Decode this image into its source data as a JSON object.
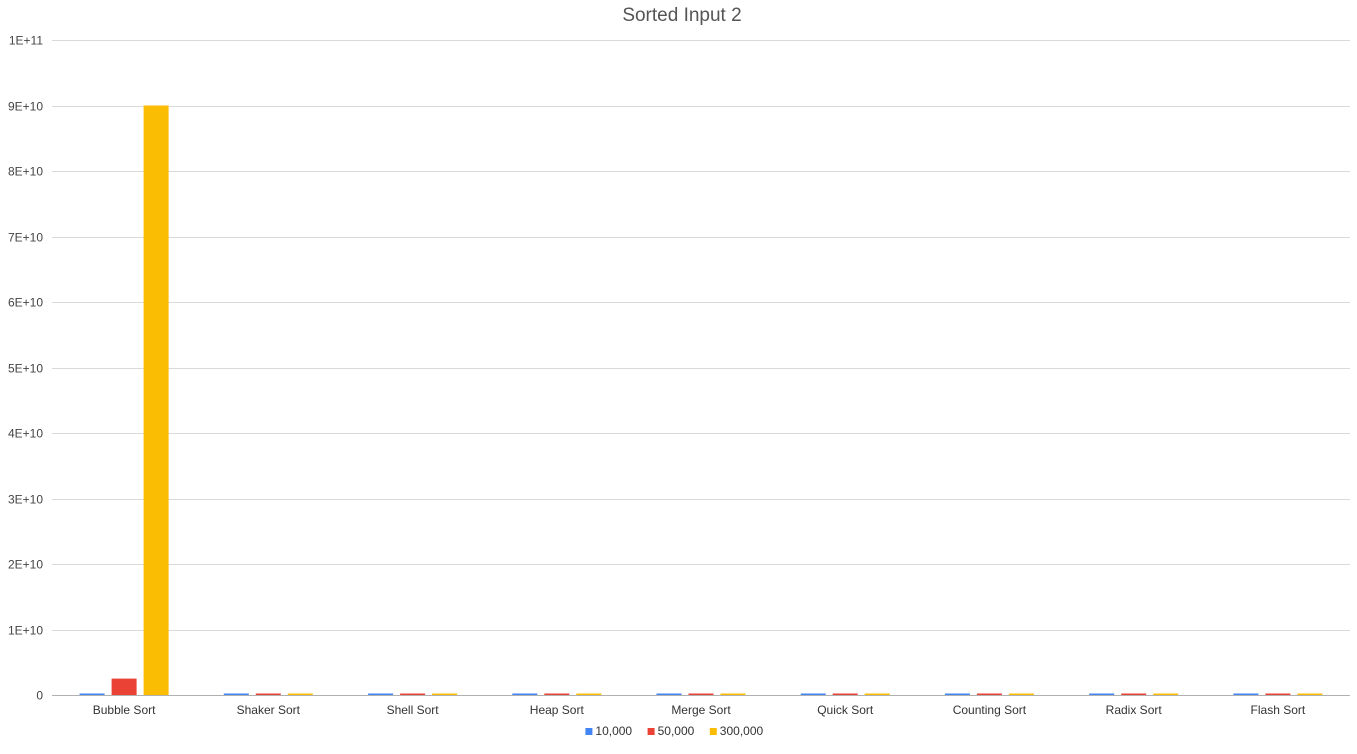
{
  "chart_data": {
    "type": "bar",
    "title": "Sorted Input 2",
    "xlabel": "",
    "ylabel": "",
    "categories": [
      "Bubble Sort",
      "Shaker Sort",
      "Shell Sort",
      "Heap Sort",
      "Merge Sort",
      "Quick Sort",
      "Counting Sort",
      "Radix Sort",
      "Flash Sort"
    ],
    "series": [
      {
        "name": "10,000",
        "color": "#4285F4",
        "values": [
          100000000,
          30000,
          300000,
          600000,
          500000,
          300000,
          50000,
          100000,
          100000
        ]
      },
      {
        "name": "50,000",
        "color": "#EA4335",
        "values": [
          2500000000,
          150000,
          1500000,
          3500000,
          2600000,
          1600000,
          250000,
          500000,
          500000
        ]
      },
      {
        "name": "300,000",
        "color": "#FBBC04",
        "values": [
          90000000000,
          900000,
          10000000,
          25000000,
          18000000,
          11000000,
          1500000,
          3000000,
          3000000
        ]
      }
    ],
    "ylim": [
      0,
      100000000000
    ],
    "yticks": [
      0,
      10000000000,
      20000000000,
      30000000000,
      40000000000,
      50000000000,
      60000000000,
      70000000000,
      80000000000,
      90000000000,
      100000000000
    ],
    "ytick_labels": [
      "0",
      "1E+10",
      "2E+10",
      "3E+10",
      "4E+10",
      "5E+10",
      "6E+10",
      "7E+10",
      "8E+10",
      "9E+10",
      "1E+11"
    ],
    "grid": true,
    "legend_position": "bottom"
  }
}
